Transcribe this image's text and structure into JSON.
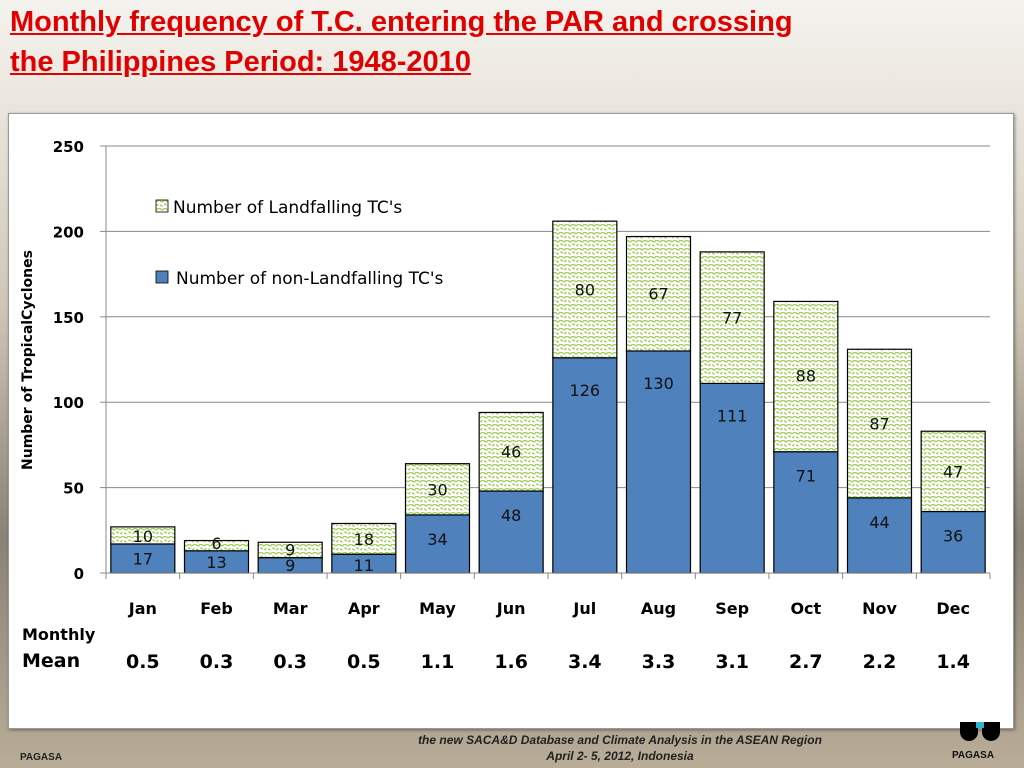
{
  "title_line1": "Monthly frequency of T.C. entering the PAR and crossing",
  "title_line2": "the Philippines Period: 1948-2010",
  "footer": {
    "line1": "the new SACA&D Database and Climate Analysis  in the ASEAN Region",
    "line2": "April 2- 5, 2012, Indonesia",
    "pagasa_left": "PAGASA",
    "pagasa_right": "PAGASA"
  },
  "chart_data": {
    "type": "bar",
    "stacked": true,
    "categories": [
      "Jan",
      "Feb",
      "Mar",
      "Apr",
      "May",
      "Jun",
      "Jul",
      "Aug",
      "Sep",
      "Oct",
      "Nov",
      "Dec"
    ],
    "series": [
      {
        "name": "Number of non-Landfalling TC's",
        "values": [
          17,
          13,
          9,
          11,
          34,
          48,
          126,
          130,
          111,
          71,
          44,
          36
        ],
        "color": "#4f81bd"
      },
      {
        "name": "Number of Landfalling TC's",
        "values": [
          10,
          6,
          9,
          18,
          30,
          46,
          80,
          67,
          77,
          88,
          87,
          47
        ],
        "color": "#9bcb50",
        "pattern": "green wavy dashes on white"
      }
    ],
    "ylabel": "Number of TropicalCyclones",
    "ylim": [
      0,
      250
    ],
    "yticks": [
      0,
      50,
      100,
      150,
      200,
      250
    ],
    "grid": true,
    "legend": "top-left inside plot",
    "monthly_mean": {
      "label_line1": "Monthly",
      "label_line2": "Mean",
      "values": [
        "0.5",
        "0.3",
        "0.3",
        "0.5",
        "1.1",
        "1.6",
        "3.4",
        "3.3",
        "3.1",
        "2.7",
        "2.2",
        "1.4"
      ]
    }
  }
}
